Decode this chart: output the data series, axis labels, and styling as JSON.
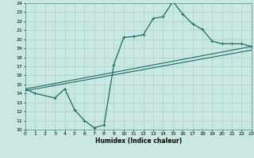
{
  "xlabel": "Humidex (Indice chaleur)",
  "xlim": [
    0,
    23
  ],
  "ylim": [
    10,
    24
  ],
  "xticks": [
    0,
    1,
    2,
    3,
    4,
    5,
    6,
    7,
    8,
    9,
    10,
    11,
    12,
    13,
    14,
    15,
    16,
    17,
    18,
    19,
    20,
    21,
    22,
    23
  ],
  "yticks": [
    10,
    11,
    12,
    13,
    14,
    15,
    16,
    17,
    18,
    19,
    20,
    21,
    22,
    23,
    24
  ],
  "bg_color": "#c9e8e1",
  "grid_color": "#a8cfc8",
  "line_color": "#1a6b60",
  "line1_x": [
    0,
    1,
    3,
    4,
    5,
    6,
    7,
    8,
    9,
    10,
    11,
    12,
    13,
    14,
    15,
    16,
    17,
    18,
    19,
    20,
    21,
    22,
    23
  ],
  "line1_y": [
    14.5,
    14.0,
    13.5,
    14.5,
    12.2,
    11.0,
    10.2,
    10.5,
    17.2,
    20.2,
    20.3,
    20.5,
    22.3,
    22.5,
    24.2,
    22.8,
    21.7,
    21.1,
    19.8,
    19.5,
    19.5,
    19.5,
    19.2
  ],
  "line2_x": [
    0,
    23
  ],
  "line2_y": [
    14.5,
    19.2
  ],
  "line3_x": [
    0,
    23
  ],
  "line3_y": [
    14.5,
    19.2
  ]
}
